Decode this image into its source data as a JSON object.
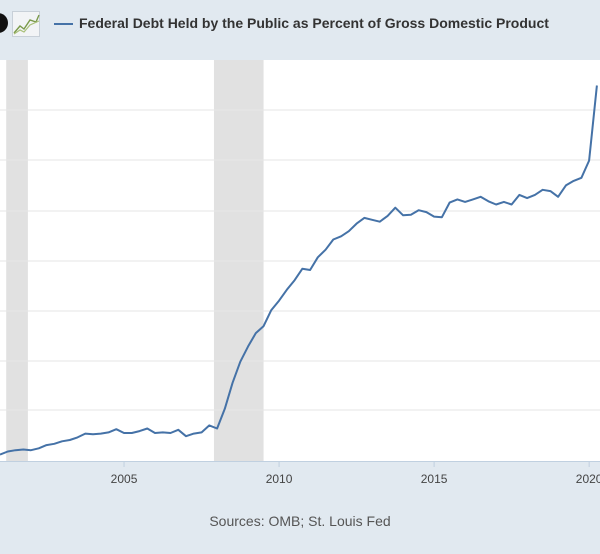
{
  "legend": {
    "label": "Federal Debt Held by the Public as Percent of Gross Domestic Product",
    "line_color": "#4572a7"
  },
  "icons": [
    "logo-icon",
    "graph-icon"
  ],
  "source": "Sources: OMB; St. Louis Fed",
  "chart_data": {
    "type": "line",
    "title": "",
    "xlabel": "",
    "ylabel": "",
    "x_tick_labels": [
      "2005",
      "2010",
      "2015",
      "2020"
    ],
    "recessions": [
      [
        2001.2,
        2001.9
      ],
      [
        2007.9,
        2009.5
      ]
    ],
    "grid": "horizontal",
    "series": [
      {
        "name": "Federal Debt Held by the Public as Percent of Gross Domestic Product",
        "color": "#4572a7",
        "points": [
          [
            2001.0,
            33.0
          ],
          [
            2001.25,
            33.5
          ],
          [
            2001.5,
            33.7
          ],
          [
            2001.75,
            33.8
          ],
          [
            2002.0,
            33.7
          ],
          [
            2002.25,
            34.0
          ],
          [
            2002.5,
            34.5
          ],
          [
            2002.75,
            34.7
          ],
          [
            2003.0,
            35.1
          ],
          [
            2003.25,
            35.3
          ],
          [
            2003.5,
            35.7
          ],
          [
            2003.75,
            36.3
          ],
          [
            2004.0,
            36.2
          ],
          [
            2004.25,
            36.3
          ],
          [
            2004.5,
            36.5
          ],
          [
            2004.75,
            37.0
          ],
          [
            2005.0,
            36.4
          ],
          [
            2005.25,
            36.4
          ],
          [
            2005.5,
            36.7
          ],
          [
            2005.75,
            37.1
          ],
          [
            2006.0,
            36.4
          ],
          [
            2006.25,
            36.5
          ],
          [
            2006.5,
            36.4
          ],
          [
            2006.75,
            36.9
          ],
          [
            2007.0,
            35.9
          ],
          [
            2007.25,
            36.3
          ],
          [
            2007.5,
            36.5
          ],
          [
            2007.75,
            37.6
          ],
          [
            2008.0,
            37.1
          ],
          [
            2008.25,
            40.2
          ],
          [
            2008.5,
            44.3
          ],
          [
            2008.75,
            47.6
          ],
          [
            2009.0,
            50.0
          ],
          [
            2009.25,
            52.1
          ],
          [
            2009.5,
            53.2
          ],
          [
            2009.75,
            55.7
          ],
          [
            2010.0,
            57.2
          ],
          [
            2010.25,
            58.9
          ],
          [
            2010.5,
            60.4
          ],
          [
            2010.75,
            62.2
          ],
          [
            2011.0,
            62.0
          ],
          [
            2011.25,
            64.0
          ],
          [
            2011.5,
            65.2
          ],
          [
            2011.75,
            66.8
          ],
          [
            2012.0,
            67.3
          ],
          [
            2012.25,
            68.1
          ],
          [
            2012.5,
            69.3
          ],
          [
            2012.75,
            70.2
          ],
          [
            2013.0,
            69.9
          ],
          [
            2013.25,
            69.6
          ],
          [
            2013.5,
            70.5
          ],
          [
            2013.75,
            71.8
          ],
          [
            2014.0,
            70.6
          ],
          [
            2014.25,
            70.7
          ],
          [
            2014.5,
            71.4
          ],
          [
            2014.75,
            71.1
          ],
          [
            2015.0,
            70.4
          ],
          [
            2015.25,
            70.3
          ],
          [
            2015.5,
            72.6
          ],
          [
            2015.75,
            73.1
          ],
          [
            2016.0,
            72.7
          ],
          [
            2016.25,
            73.1
          ],
          [
            2016.5,
            73.5
          ],
          [
            2016.75,
            72.8
          ],
          [
            2017.0,
            72.3
          ],
          [
            2017.25,
            72.7
          ],
          [
            2017.5,
            72.3
          ],
          [
            2017.75,
            73.8
          ],
          [
            2018.0,
            73.3
          ],
          [
            2018.25,
            73.8
          ],
          [
            2018.5,
            74.6
          ],
          [
            2018.75,
            74.4
          ],
          [
            2019.0,
            73.5
          ],
          [
            2019.25,
            75.3
          ],
          [
            2019.5,
            76.0
          ],
          [
            2019.75,
            76.5
          ],
          [
            2020.0,
            79.2
          ],
          [
            2020.25,
            91.0
          ]
        ]
      }
    ]
  }
}
